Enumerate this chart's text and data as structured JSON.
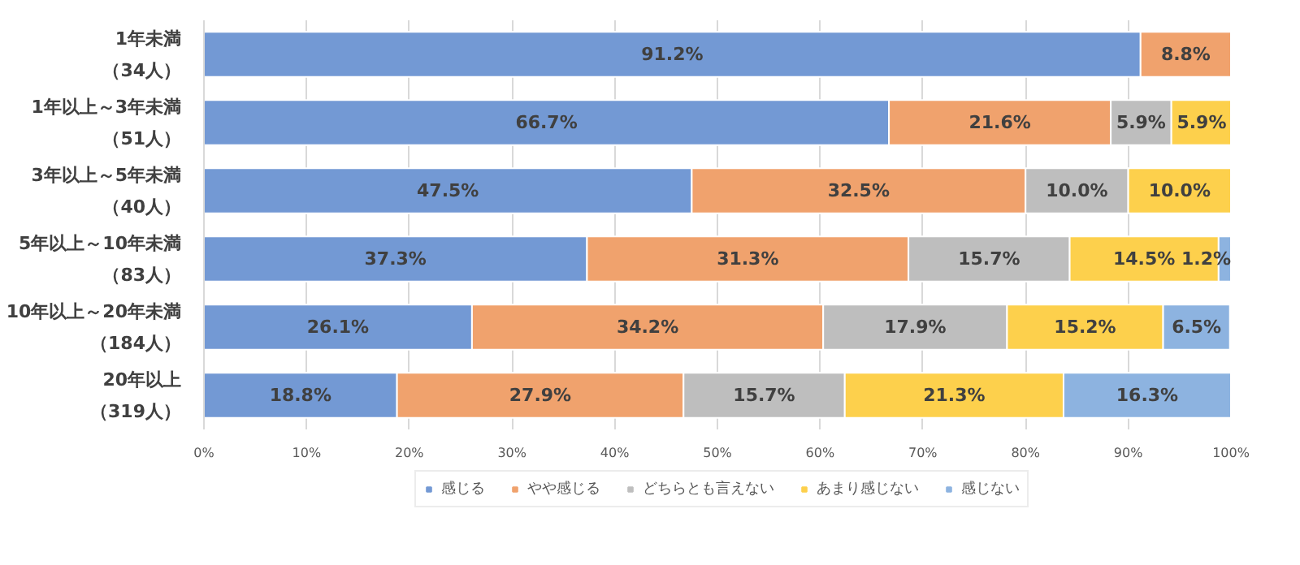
{
  "chart_data": {
    "type": "bar",
    "orientation": "horizontal",
    "stacked": true,
    "categories": [
      "1年未満（34人）",
      "1年以上～3年未満（51人）",
      "3年以上～5年未満（40人）",
      "5年以上～10年未満（83人）",
      "10年以上～20年未満（184人）",
      "20年以上（319人）"
    ],
    "series": [
      {
        "name": "感じる",
        "color": "#7399d4",
        "values": [
          91.2,
          66.7,
          47.5,
          37.3,
          26.1,
          18.8
        ],
        "value_labels": [
          "91.2%",
          "66.7%",
          "47.5%",
          "37.3%",
          "26.1%",
          "18.8%"
        ]
      },
      {
        "name": "やや感じる",
        "color": "#f0a26d",
        "values": [
          8.8,
          21.6,
          32.5,
          31.3,
          34.2,
          27.9
        ],
        "value_labels": [
          "8.8%",
          "21.6%",
          "32.5%",
          "31.3%",
          "34.2%",
          "27.9%"
        ]
      },
      {
        "name": "どちらとも言えない",
        "color": "#bebebe",
        "values": [
          null,
          5.9,
          10.0,
          15.7,
          17.9,
          15.7
        ],
        "value_labels": [
          null,
          "5.9%",
          "10.0%",
          "15.7%",
          "17.9%",
          "15.7%"
        ]
      },
      {
        "name": "あまり感じない",
        "color": "#fdd04c",
        "values": [
          null,
          5.9,
          10.0,
          14.5,
          15.2,
          21.3
        ],
        "value_labels": [
          null,
          "5.9%",
          "10.0%",
          "14.5%",
          "15.2%",
          "21.3%"
        ]
      },
      {
        "name": "感じない",
        "color": "#8db3e0",
        "values": [
          null,
          null,
          null,
          1.2,
          6.5,
          16.3
        ],
        "value_labels": [
          null,
          null,
          null,
          "1.2%",
          "6.5%",
          "16.3%"
        ]
      }
    ],
    "xlim": [
      0,
      100
    ],
    "xticks": [
      {
        "value": 0,
        "label": "0%"
      },
      {
        "value": 10,
        "label": "10%"
      },
      {
        "value": 20,
        "label": "20%"
      },
      {
        "value": 30,
        "label": "30%"
      },
      {
        "value": 40,
        "label": "40%"
      },
      {
        "value": 50,
        "label": "50%"
      },
      {
        "value": 60,
        "label": "60%"
      },
      {
        "value": 70,
        "label": "70%"
      },
      {
        "value": 80,
        "label": "80%"
      },
      {
        "value": 90,
        "label": "90%"
      },
      {
        "value": 100,
        "label": "100%"
      }
    ],
    "grid": "x",
    "legend": "bottom"
  }
}
